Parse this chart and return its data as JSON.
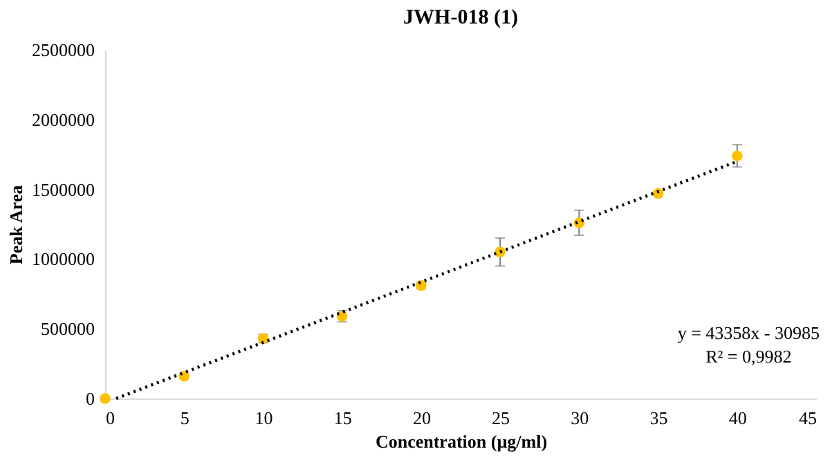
{
  "chart_data": {
    "type": "scatter",
    "title": "JWH-018 (1)",
    "xlabel": "Concentration (µg/ml)",
    "ylabel": "Peak Area",
    "annotations": [
      "y = 43358x - 30985",
      "R² = 0,9982"
    ],
    "x": [
      0,
      5,
      10,
      15,
      20,
      25,
      30,
      35,
      40
    ],
    "series": [
      {
        "type": "scatter",
        "color": "#ffc000",
        "marker": "circle",
        "values": [
          0,
          160000,
          430000,
          590000,
          810000,
          1050000,
          1260000,
          1470000,
          1740000
        ],
        "errors": [
          null,
          15000,
          30000,
          40000,
          20000,
          100000,
          90000,
          15000,
          80000
        ]
      },
      {
        "type": "line",
        "color": "#000000",
        "line_style": "dotted",
        "x": [
          0.7,
          40
        ],
        "values": [
          0,
          1700000
        ]
      }
    ],
    "xlim": [
      0,
      45
    ],
    "xticks": [
      0,
      5,
      10,
      15,
      20,
      25,
      30,
      35,
      40,
      45
    ],
    "ylim": [
      0,
      2500000
    ],
    "yticks": [
      0,
      500000,
      1000000,
      1500000,
      2000000,
      2500000
    ]
  }
}
